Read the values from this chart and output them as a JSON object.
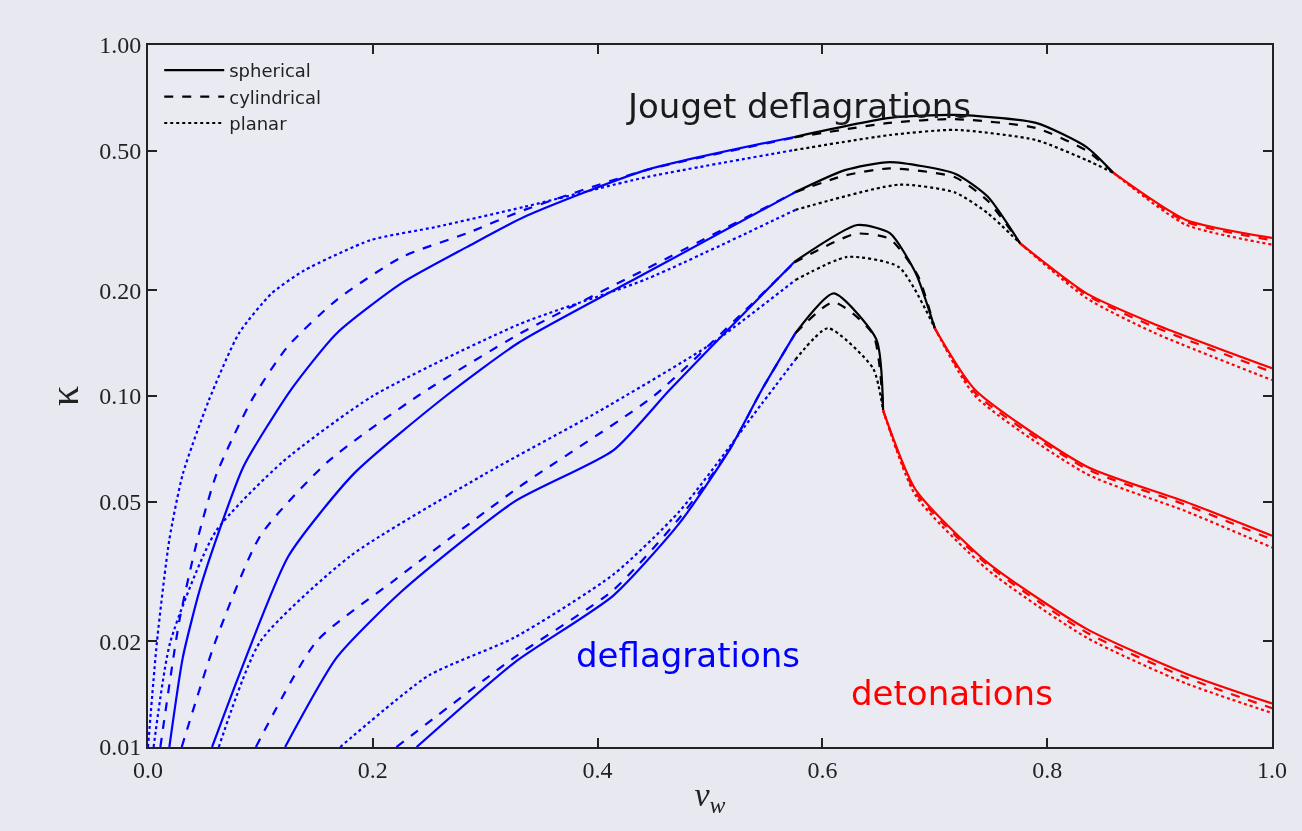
{
  "chart_data": {
    "type": "line",
    "xlabel": "v$_{w}$",
    "ylabel": "κ",
    "log": "y",
    "grid": false,
    "legend": "top left",
    "xlim": [
      0,
      1
    ],
    "xticks": [
      {
        "value": 0,
        "label": "0.0"
      },
      {
        "value": 0.2,
        "label": "0.2"
      },
      {
        "value": 0.4,
        "label": "0.4"
      },
      {
        "value": 0.6,
        "label": "0.6"
      },
      {
        "value": 0.8,
        "label": "0.8"
      },
      {
        "value": 1,
        "label": "1.0"
      }
    ],
    "ylim": [
      0.01,
      1
    ],
    "yticks": [
      0.01,
      0.02,
      0.05,
      {
        "value": 0.1,
        "label": "0.10"
      },
      {
        "value": 0.2,
        "label": "0.20"
      },
      {
        "value": 0.5,
        "label": "0.50"
      },
      {
        "value": 1,
        "label": "1.00"
      }
    ],
    "annotations": [
      "Jouget deflagrations",
      "deflagrations",
      "detonations"
    ],
    "series": [
      {
        "color": "#0000ff",
        "line_style": "solid",
        "x": [
          0.019,
          0.031,
          0.046,
          0.063,
          0.085,
          0.127,
          0.168,
          0.226,
          0.284,
          0.335,
          0.443,
          0.575
        ],
        "values": [
          0.01,
          0.018,
          0.028,
          0.041,
          0.063,
          0.104,
          0.151,
          0.21,
          0.266,
          0.324,
          0.44,
          0.547
        ]
      },
      {
        "name": "spherical",
        "color": "#000000",
        "line_style": "solid",
        "x": [
          0.575,
          0.66,
          0.718,
          0.79,
          0.835,
          0.859
        ],
        "values": [
          0.547,
          0.62,
          0.632,
          0.6,
          0.512,
          0.432
        ]
      },
      {
        "color": "#ff0000",
        "line_style": "solid",
        "x": [
          0.859,
          0.923,
          1.0
        ],
        "values": [
          0.432,
          0.318,
          0.282
        ]
      },
      {
        "color": "#0000ff",
        "line_style": "dashed",
        "x": [
          0.011,
          0.028,
          0.044,
          0.061,
          0.092,
          0.124,
          0.168,
          0.226,
          0.284,
          0.335,
          0.443,
          0.575
        ],
        "values": [
          0.01,
          0.023,
          0.039,
          0.06,
          0.097,
          0.138,
          0.188,
          0.249,
          0.291,
          0.339,
          0.44,
          0.545
        ]
      },
      {
        "name": "cylindrical",
        "color": "#000000",
        "line_style": "dashed",
        "x": [
          0.575,
          0.66,
          0.718,
          0.79,
          0.835,
          0.859
        ],
        "values": [
          0.545,
          0.6,
          0.615,
          0.58,
          0.5,
          0.432
        ]
      },
      {
        "color": "#ff0000",
        "line_style": "dashed",
        "x": [
          0.859,
          0.923,
          1.0
        ],
        "values": [
          0.432,
          0.314,
          0.278
        ]
      },
      {
        "color": "#0000ff",
        "line_style": "dotted",
        "x": [
          0.0,
          0.008,
          0.019,
          0.031,
          0.054,
          0.081,
          0.11,
          0.139,
          0.198,
          0.256,
          0.335,
          0.443,
          0.575
        ],
        "values": [
          0.01,
          0.02,
          0.039,
          0.06,
          0.097,
          0.151,
          0.196,
          0.228,
          0.278,
          0.303,
          0.346,
          0.42,
          0.502
        ]
      },
      {
        "name": "planar",
        "color": "#000000",
        "line_style": "dotted",
        "x": [
          0.575,
          0.66,
          0.718,
          0.79,
          0.835,
          0.859
        ],
        "values": [
          0.502,
          0.554,
          0.573,
          0.536,
          0.47,
          0.432
        ]
      },
      {
        "color": "#ff0000",
        "line_style": "dotted",
        "x": [
          0.859,
          0.923,
          1.0
        ],
        "values": [
          0.432,
          0.308,
          0.27
        ]
      },
      {
        "color": "#0000ff",
        "line_style": "solid",
        "x": [
          0.057,
          0.081,
          0.125,
          0.183,
          0.265,
          0.33,
          0.443,
          0.576
        ],
        "values": [
          0.01,
          0.016,
          0.035,
          0.06,
          0.1,
          0.142,
          0.224,
          0.381
        ]
      },
      {
        "color": "#000000",
        "line_style": "solid",
        "x": [
          0.576,
          0.62,
          0.66,
          0.718,
          0.747,
          0.776
        ],
        "values": [
          0.381,
          0.44,
          0.464,
          0.43,
          0.37,
          0.272
        ]
      },
      {
        "color": "#ff0000",
        "line_style": "solid",
        "x": [
          0.776,
          0.835,
          0.894,
          1.0
        ],
        "values": [
          0.272,
          0.196,
          0.161,
          0.12
        ]
      },
      {
        "color": "#0000ff",
        "line_style": "dashed",
        "x": [
          0.03,
          0.06,
          0.1,
          0.16,
          0.24,
          0.33,
          0.443,
          0.576
        ],
        "values": [
          0.01,
          0.02,
          0.04,
          0.065,
          0.1,
          0.15,
          0.23,
          0.381
        ]
      },
      {
        "color": "#000000",
        "line_style": "dashed",
        "x": [
          0.576,
          0.62,
          0.66,
          0.718,
          0.747,
          0.776
        ],
        "values": [
          0.381,
          0.425,
          0.445,
          0.42,
          0.36,
          0.272
        ]
      },
      {
        "color": "#ff0000",
        "line_style": "dashed",
        "x": [
          0.776,
          0.835,
          0.894,
          1.0
        ],
        "values": [
          0.272,
          0.194,
          0.158,
          0.117
        ]
      },
      {
        "color": "#0000ff",
        "line_style": "dotted",
        "x": [
          0.005,
          0.02,
          0.06,
          0.12,
          0.2,
          0.33,
          0.443,
          0.576
        ],
        "values": [
          0.01,
          0.02,
          0.041,
          0.065,
          0.1,
          0.16,
          0.215,
          0.339
        ]
      },
      {
        "color": "#000000",
        "line_style": "dotted",
        "x": [
          0.576,
          0.668,
          0.718,
          0.747,
          0.776
        ],
        "values": [
          0.339,
          0.4,
          0.38,
          0.332,
          0.272
        ]
      },
      {
        "color": "#ff0000",
        "line_style": "dotted",
        "x": [
          0.776,
          0.835,
          0.894,
          1.0
        ],
        "values": [
          0.272,
          0.19,
          0.152,
          0.111
        ]
      },
      {
        "color": "#0000ff",
        "line_style": "solid",
        "x": [
          0.122,
          0.168,
          0.227,
          0.326,
          0.414,
          0.464,
          0.531,
          0.575
        ],
        "values": [
          0.01,
          0.018,
          0.028,
          0.05,
          0.07,
          0.104,
          0.173,
          0.241
        ]
      },
      {
        "color": "#000000",
        "line_style": "solid",
        "x": [
          0.575,
          0.631,
          0.66,
          0.683,
          0.7
        ],
        "values": [
          0.241,
          0.307,
          0.291,
          0.224,
          0.156
        ]
      },
      {
        "color": "#ff0000",
        "line_style": "solid",
        "x": [
          0.7,
          0.736,
          0.835,
          0.923,
          1.0
        ],
        "values": [
          0.156,
          0.104,
          0.063,
          0.05,
          0.04
        ]
      },
      {
        "color": "#0000ff",
        "line_style": "dashed",
        "x": [
          0.096,
          0.15,
          0.22,
          0.33,
          0.45,
          0.531,
          0.575
        ],
        "values": [
          0.01,
          0.02,
          0.03,
          0.055,
          0.1,
          0.175,
          0.24
        ]
      },
      {
        "color": "#000000",
        "line_style": "dashed",
        "x": [
          0.575,
          0.63,
          0.66,
          0.685,
          0.7
        ],
        "values": [
          0.24,
          0.29,
          0.28,
          0.22,
          0.156
        ]
      },
      {
        "color": "#ff0000",
        "line_style": "dashed",
        "x": [
          0.7,
          0.736,
          0.835,
          0.923,
          1.0
        ],
        "values": [
          0.156,
          0.102,
          0.062,
          0.049,
          0.039
        ]
      },
      {
        "color": "#0000ff",
        "line_style": "dotted",
        "x": [
          0.063,
          0.1,
          0.18,
          0.3,
          0.4,
          0.5,
          0.576
        ],
        "values": [
          0.01,
          0.02,
          0.035,
          0.06,
          0.09,
          0.14,
          0.214
        ]
      },
      {
        "color": "#000000",
        "line_style": "dotted",
        "x": [
          0.576,
          0.622,
          0.668,
          0.7
        ],
        "values": [
          0.214,
          0.249,
          0.233,
          0.156
        ]
      },
      {
        "color": "#ff0000",
        "line_style": "dotted",
        "x": [
          0.7,
          0.736,
          0.835,
          0.923,
          1.0
        ],
        "values": [
          0.156,
          0.1,
          0.06,
          0.047,
          0.037
        ]
      },
      {
        "color": "#0000ff",
        "line_style": "solid",
        "x": [
          0.239,
          0.326,
          0.414,
          0.473,
          0.517,
          0.546,
          0.576
        ],
        "values": [
          0.01,
          0.0174,
          0.027,
          0.0435,
          0.07,
          0.104,
          0.151
        ]
      },
      {
        "color": "#000000",
        "line_style": "solid",
        "x": [
          0.576,
          0.61,
          0.648,
          0.654
        ],
        "values": [
          0.151,
          0.196,
          0.145,
          0.091
        ]
      },
      {
        "color": "#ff0000",
        "line_style": "solid",
        "x": [
          0.654,
          0.683,
          0.747,
          0.835,
          0.923,
          1.0
        ],
        "values": [
          0.091,
          0.054,
          0.0335,
          0.0217,
          0.0162,
          0.0133
        ]
      },
      {
        "color": "#0000ff",
        "line_style": "dashed",
        "x": [
          0.221,
          0.326,
          0.414,
          0.473,
          0.517,
          0.546,
          0.576
        ],
        "values": [
          0.01,
          0.018,
          0.028,
          0.045,
          0.07,
          0.104,
          0.151
        ]
      },
      {
        "color": "#000000",
        "line_style": "dashed",
        "x": [
          0.576,
          0.61,
          0.645,
          0.654
        ],
        "values": [
          0.151,
          0.185,
          0.15,
          0.091
        ]
      },
      {
        "color": "#ff0000",
        "line_style": "dashed",
        "x": [
          0.654,
          0.683,
          0.747,
          0.835,
          0.923,
          1.0
        ],
        "values": [
          0.091,
          0.053,
          0.033,
          0.0212,
          0.0158,
          0.0129
        ]
      },
      {
        "color": "#0000ff",
        "line_style": "dotted",
        "x": [
          0.171,
          0.25,
          0.326,
          0.414,
          0.473,
          0.546,
          0.576
        ],
        "values": [
          0.01,
          0.016,
          0.0205,
          0.031,
          0.047,
          0.095,
          0.127
        ]
      },
      {
        "color": "#000000",
        "line_style": "dotted",
        "x": [
          0.576,
          0.605,
          0.645,
          0.654
        ],
        "values": [
          0.127,
          0.156,
          0.12,
          0.091
        ]
      },
      {
        "color": "#ff0000",
        "line_style": "dotted",
        "x": [
          0.654,
          0.683,
          0.747,
          0.835,
          0.923,
          1.0
        ],
        "values": [
          0.091,
          0.052,
          0.032,
          0.0205,
          0.0152,
          0.0125
        ]
      }
    ]
  }
}
